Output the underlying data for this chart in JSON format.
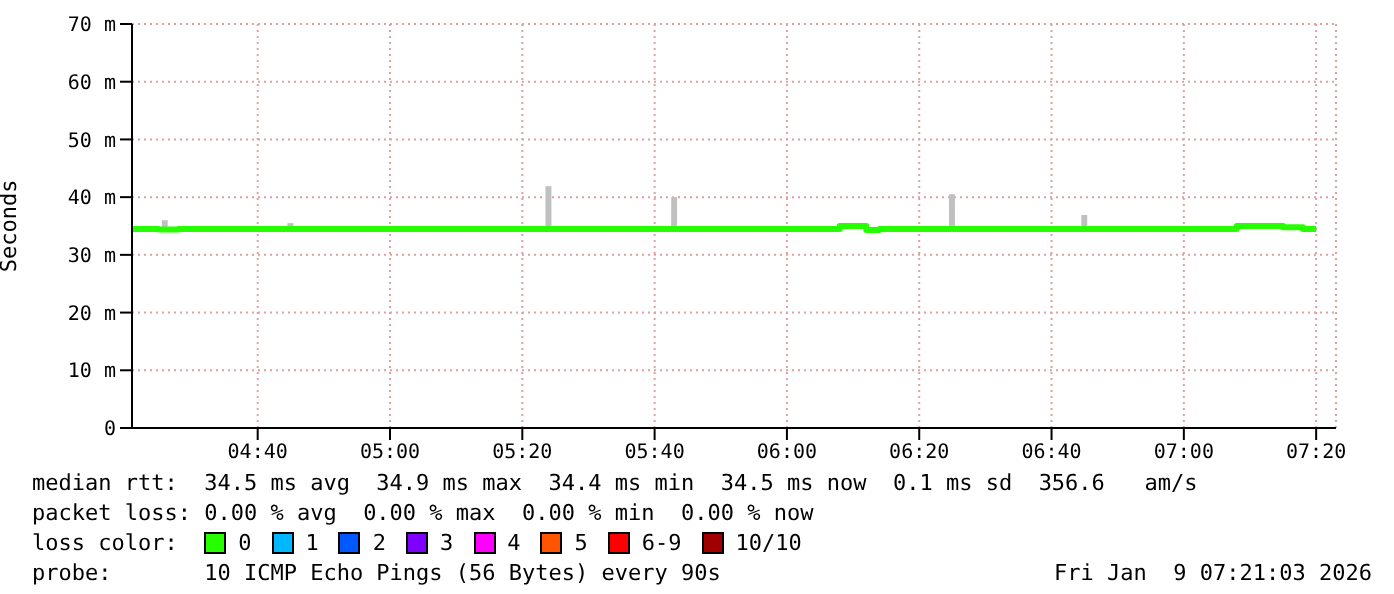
{
  "chart_data": {
    "type": "step",
    "ylabel": "Seconds",
    "legend_title": "loss color:",
    "legend": "bottom",
    "grid": true,
    "line_style": "solid",
    "marker": "none",
    "xlim": [
      "2026-01-09T04:21",
      "2026-01-09T07:23"
    ],
    "xticks": [
      {
        "value": "2026-01-09T04:40",
        "label": "04:40"
      },
      {
        "value": "2026-01-09T05:00",
        "label": "05:00"
      },
      {
        "value": "2026-01-09T05:20",
        "label": "05:20"
      },
      {
        "value": "2026-01-09T05:40",
        "label": "05:40"
      },
      {
        "value": "2026-01-09T06:00",
        "label": "06:00"
      },
      {
        "value": "2026-01-09T06:20",
        "label": "06:20"
      },
      {
        "value": "2026-01-09T06:40",
        "label": "06:40"
      },
      {
        "value": "2026-01-09T07:00",
        "label": "07:00"
      },
      {
        "value": "2026-01-09T07:20",
        "label": "07:20"
      }
    ],
    "ylim": [
      0,
      70
    ],
    "yticks": [
      0,
      {
        "value": 10,
        "label": "10 m"
      },
      {
        "value": 20,
        "label": "20 m"
      },
      {
        "value": 30,
        "label": "30 m"
      },
      {
        "value": 40,
        "label": "40 m"
      },
      {
        "value": 50,
        "label": "50 m"
      },
      {
        "value": 60,
        "label": "60 m"
      },
      {
        "value": 70,
        "label": "70 m"
      }
    ],
    "series": [
      {
        "name": "0",
        "color": "#26ff00",
        "x": [
          "2026-01-09T04:21",
          "2026-01-09T04:25",
          "2026-01-09T04:28",
          "2026-01-09T04:35",
          "2026-01-09T04:45",
          "2026-01-09T04:55",
          "2026-01-09T05:05",
          "2026-01-09T05:15",
          "2026-01-09T05:25",
          "2026-01-09T05:35",
          "2026-01-09T05:45",
          "2026-01-09T05:55",
          "2026-01-09T06:05",
          "2026-01-09T06:08",
          "2026-01-09T06:12",
          "2026-01-09T06:14",
          "2026-01-09T06:20",
          "2026-01-09T06:30",
          "2026-01-09T06:40",
          "2026-01-09T06:50",
          "2026-01-09T07:00",
          "2026-01-09T07:08",
          "2026-01-09T07:15",
          "2026-01-09T07:18",
          "2026-01-09T07:20"
        ],
        "values": [
          34.5,
          34.4,
          34.5,
          34.5,
          34.5,
          34.5,
          34.5,
          34.5,
          34.5,
          34.5,
          34.5,
          34.5,
          34.5,
          35,
          34.3,
          34.5,
          34.5,
          34.5,
          34.5,
          34.5,
          34.5,
          35,
          34.8,
          34.5,
          34.5
        ]
      },
      {
        "type": "bar",
        "color": "#c0c0c0",
        "x": [
          "2026-01-09T04:26",
          "2026-01-09T04:45",
          "2026-01-09T05:24",
          "2026-01-09T05:43",
          "2026-01-09T06:25",
          "2026-01-09T06:45"
        ],
        "base": [
          34.5,
          34.5,
          34.5,
          34.5,
          34.5,
          34.5
        ],
        "values": [
          1.5,
          1,
          7.4,
          5.5,
          6,
          2.4
        ]
      },
      {
        "name": "1",
        "color": "#00b8ff"
      },
      {
        "name": "2",
        "color": "#0059ff"
      },
      {
        "name": "3",
        "color": "#7e00ff"
      },
      {
        "name": "4",
        "color": "#ff00ff"
      },
      {
        "name": "5",
        "color": "#ff5500"
      },
      {
        "name": "6-9",
        "color": "#ff0000"
      },
      {
        "name": "10/10",
        "color": "#a10000"
      }
    ],
    "annotations": [
      "median rtt:  34.5 ms avg  34.9 ms max  34.4 ms min  34.5 ms now  0.1 ms sd  356.6   am/s",
      "packet loss: 0.00 % avg  0.00 % max  0.00 % min  0.00 % now",
      "probe:       10 ICMP Echo Pings (56 Bytes) every 90s",
      "Fri Jan  9 07:21:03 2026"
    ]
  }
}
